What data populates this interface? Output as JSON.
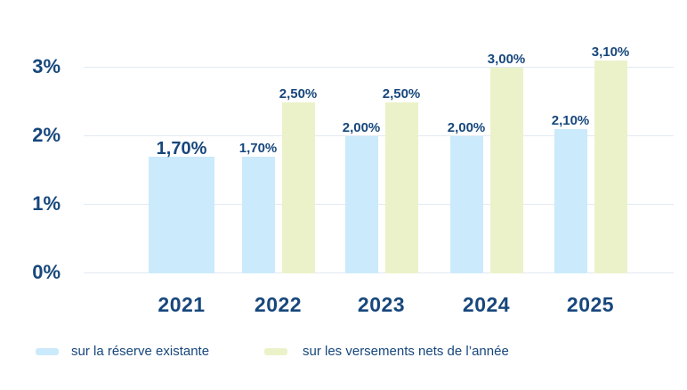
{
  "chart_data": {
    "type": "bar",
    "title": "",
    "xlabel": "",
    "ylabel": "",
    "categories": [
      "2021",
      "2022",
      "2023",
      "2024",
      "2025"
    ],
    "series": [
      {
        "name": "sur la réserve existante",
        "color": "#CBEAFB",
        "values": [
          1.7,
          1.7,
          2.0,
          2.0,
          2.1
        ],
        "labels": [
          "1,70%",
          "1,70%",
          "2,00%",
          "2,00%",
          "2,10%"
        ]
      },
      {
        "name": "sur les versements nets de l’année",
        "color": "#EBF2C9",
        "values": [
          null,
          2.5,
          2.5,
          3.0,
          3.1
        ],
        "labels": [
          null,
          "2,50%",
          "2,50%",
          "3,00%",
          "3,10%"
        ]
      }
    ],
    "yticks": [
      {
        "value": 3,
        "label": "3%"
      },
      {
        "value": 2,
        "label": "2%"
      },
      {
        "value": 1,
        "label": "1%"
      },
      {
        "value": 0,
        "label": "0%"
      }
    ],
    "ylim": [
      0,
      3.3
    ],
    "grid": true,
    "legend_position": "bottom",
    "colors": {
      "text": "#17477C",
      "gridline": "#E3EAF1",
      "background": "#FFFFFF"
    }
  }
}
